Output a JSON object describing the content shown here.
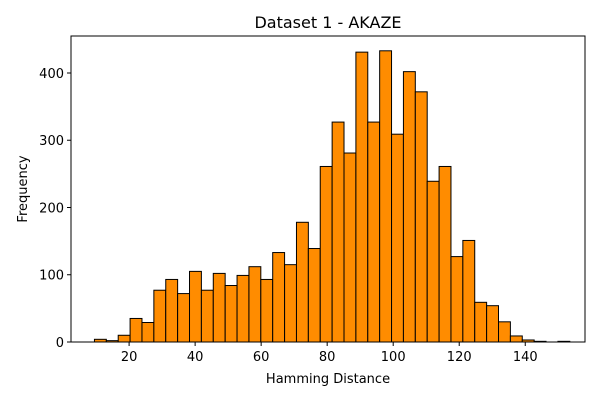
{
  "chart_data": {
    "type": "bar",
    "title": "Dataset 1 - AKAZE",
    "xlabel": "Hamming Distance",
    "ylabel": "Frequency",
    "xlim": [
      2.4,
      158.1
    ],
    "ylim": [
      0,
      455
    ],
    "xticks": [
      20,
      40,
      60,
      80,
      100,
      120,
      140
    ],
    "yticks": [
      0,
      100,
      200,
      300,
      400
    ],
    "grid": false,
    "bar_color": "#ff8c00",
    "edge_color": "#000000",
    "bins": [
      {
        "start": 9.5,
        "end": 13.1,
        "value": 4
      },
      {
        "start": 13.1,
        "end": 16.7,
        "value": 2
      },
      {
        "start": 16.7,
        "end": 20.3,
        "value": 10
      },
      {
        "start": 20.3,
        "end": 23.9,
        "value": 35
      },
      {
        "start": 23.9,
        "end": 27.5,
        "value": 29
      },
      {
        "start": 27.5,
        "end": 31.1,
        "value": 77
      },
      {
        "start": 31.1,
        "end": 34.7,
        "value": 93
      },
      {
        "start": 34.7,
        "end": 38.3,
        "value": 72
      },
      {
        "start": 38.3,
        "end": 41.9,
        "value": 105
      },
      {
        "start": 41.9,
        "end": 45.5,
        "value": 77
      },
      {
        "start": 45.5,
        "end": 49.1,
        "value": 102
      },
      {
        "start": 49.1,
        "end": 52.7,
        "value": 84
      },
      {
        "start": 52.7,
        "end": 56.3,
        "value": 99
      },
      {
        "start": 56.3,
        "end": 59.9,
        "value": 112
      },
      {
        "start": 59.9,
        "end": 63.5,
        "value": 93
      },
      {
        "start": 63.5,
        "end": 67.1,
        "value": 133
      },
      {
        "start": 67.1,
        "end": 70.7,
        "value": 115
      },
      {
        "start": 70.7,
        "end": 74.3,
        "value": 178
      },
      {
        "start": 74.3,
        "end": 77.9,
        "value": 139
      },
      {
        "start": 77.9,
        "end": 81.5,
        "value": 261
      },
      {
        "start": 81.5,
        "end": 85.1,
        "value": 327
      },
      {
        "start": 85.1,
        "end": 88.7,
        "value": 281
      },
      {
        "start": 88.7,
        "end": 92.3,
        "value": 431
      },
      {
        "start": 92.3,
        "end": 95.9,
        "value": 327
      },
      {
        "start": 95.9,
        "end": 99.5,
        "value": 433
      },
      {
        "start": 99.5,
        "end": 103.1,
        "value": 309
      },
      {
        "start": 103.1,
        "end": 106.7,
        "value": 402
      },
      {
        "start": 106.7,
        "end": 110.3,
        "value": 372
      },
      {
        "start": 110.3,
        "end": 113.9,
        "value": 239
      },
      {
        "start": 113.9,
        "end": 117.5,
        "value": 261
      },
      {
        "start": 117.5,
        "end": 121.1,
        "value": 127
      },
      {
        "start": 121.1,
        "end": 124.7,
        "value": 151
      },
      {
        "start": 124.7,
        "end": 128.3,
        "value": 59
      },
      {
        "start": 128.3,
        "end": 131.9,
        "value": 54
      },
      {
        "start": 131.9,
        "end": 135.5,
        "value": 30
      },
      {
        "start": 135.5,
        "end": 139.1,
        "value": 9
      },
      {
        "start": 139.1,
        "end": 142.7,
        "value": 3
      },
      {
        "start": 142.7,
        "end": 146.3,
        "value": 1
      },
      {
        "start": 146.3,
        "end": 149.9,
        "value": 0
      },
      {
        "start": 149.9,
        "end": 153.5,
        "value": 1
      }
    ]
  }
}
